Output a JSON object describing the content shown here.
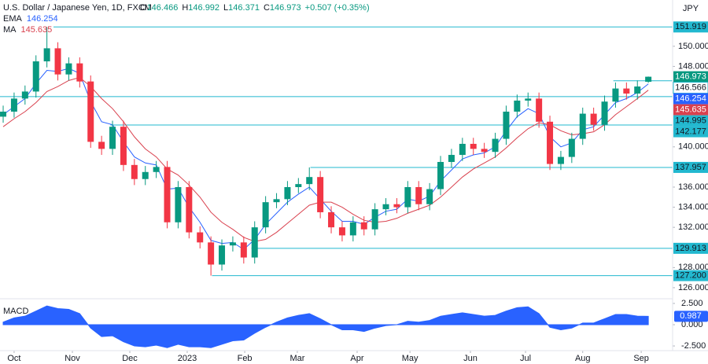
{
  "header": {
    "title": "U.S. Dollar / Japanese Yen, 1D, FXCM",
    "ohlc": [
      {
        "key": "O",
        "value": "146.466"
      },
      {
        "key": "H",
        "value": "146.992"
      },
      {
        "key": "L",
        "value": "146.371"
      },
      {
        "key": "C",
        "value": "146.973"
      }
    ],
    "change": "+0.507 (+0.35%)",
    "currency": "JPY"
  },
  "chart_data": [
    {
      "type": "candlestick",
      "up_color": "#089981",
      "down_color": "#f23645",
      "xlim": [
        -0.29,
        61.22
      ],
      "ylim": [
        124.9,
        154.6
      ],
      "xticks": [
        {
          "value": 1.0,
          "label": "Oct"
        },
        {
          "value": 6.33,
          "label": "Nov"
        },
        {
          "value": 11.58,
          "label": "Dec"
        },
        {
          "value": 16.83,
          "label": "2023"
        },
        {
          "value": 22.09,
          "label": "Feb"
        },
        {
          "value": 26.9,
          "label": "Mar"
        },
        {
          "value": 32.37,
          "label": "Apr"
        },
        {
          "value": 37.2,
          "label": "May"
        },
        {
          "value": 42.73,
          "label": "Jun"
        },
        {
          "value": 47.77,
          "label": "Jul"
        },
        {
          "value": 53.0,
          "label": "Aug"
        },
        {
          "value": 58.35,
          "label": "Sep"
        }
      ],
      "yticks": [
        {
          "value": 150,
          "label": "150.000"
        },
        {
          "value": 148,
          "label": "148.000"
        },
        {
          "value": 140,
          "label": "140.000"
        },
        {
          "value": 136,
          "label": "136.000"
        },
        {
          "value": 134,
          "label": "134.000"
        },
        {
          "value": 132,
          "label": "132.000"
        },
        {
          "value": 128,
          "label": "128.000"
        },
        {
          "value": 126,
          "label": "126.000"
        }
      ],
      "open": [
        143.0,
        143.5,
        144.8,
        145.5,
        148.5,
        149.8,
        147.2,
        148.3,
        146.5,
        140.5,
        139.8,
        142.0,
        138.2,
        136.8,
        137.5,
        138.0,
        132.5,
        136.0,
        131.5,
        130.5,
        128.3,
        130.2,
        130.5,
        129.0,
        132.0,
        134.5,
        134.8,
        136.0,
        136.3,
        137.0,
        133.5,
        132.0,
        131.2,
        132.5,
        131.8,
        133.8,
        134.3,
        134.0,
        136.0,
        134.3,
        135.8,
        138.5,
        139.2,
        140.3,
        139.8,
        139.5,
        140.8,
        143.5,
        144.6,
        144.8,
        142.5,
        138.3,
        139.0,
        140.8,
        143.3,
        142.2,
        144.5,
        145.8,
        145.3,
        146.466
      ],
      "high": [
        144.1,
        145.4,
        146.1,
        149.1,
        151.919,
        150.4,
        148.9,
        148.9,
        147.1,
        141.1,
        142.6,
        142.6,
        138.8,
        138.1,
        138.6,
        138.6,
        136.6,
        136.6,
        132.1,
        131.1,
        130.8,
        131.1,
        131.1,
        132.6,
        135.1,
        135.4,
        136.6,
        136.9,
        137.957,
        137.6,
        134.1,
        132.6,
        133.1,
        133.1,
        134.4,
        134.9,
        134.9,
        136.6,
        136.6,
        136.4,
        139.1,
        139.8,
        140.9,
        140.9,
        140.4,
        141.4,
        144.1,
        145.2,
        145.4,
        145.4,
        143.1,
        139.6,
        141.4,
        143.9,
        143.9,
        145.1,
        146.4,
        146.4,
        146.6,
        146.992
      ],
      "low": [
        142.4,
        142.9,
        144.2,
        144.9,
        147.9,
        146.6,
        146.6,
        145.9,
        139.9,
        139.2,
        139.2,
        137.6,
        136.2,
        136.2,
        136.9,
        131.9,
        131.9,
        130.9,
        129.9,
        127.2,
        127.7,
        129.6,
        128.4,
        128.4,
        131.4,
        133.9,
        134.2,
        135.4,
        135.7,
        132.9,
        131.4,
        130.6,
        130.6,
        131.2,
        131.2,
        133.2,
        133.4,
        133.4,
        133.7,
        133.7,
        135.2,
        137.9,
        138.6,
        139.2,
        138.9,
        138.9,
        140.2,
        142.9,
        144.0,
        141.9,
        137.7,
        137.7,
        138.4,
        140.2,
        141.6,
        141.6,
        143.9,
        144.7,
        144.7,
        146.371
      ],
      "close": [
        143.5,
        144.8,
        145.5,
        148.5,
        149.8,
        147.2,
        148.3,
        146.5,
        140.5,
        139.8,
        142.0,
        138.2,
        136.8,
        137.5,
        138.0,
        132.5,
        136.0,
        131.5,
        130.5,
        128.3,
        130.2,
        130.5,
        129.0,
        132.0,
        134.5,
        134.8,
        136.0,
        136.3,
        137.0,
        133.5,
        132.0,
        131.2,
        132.5,
        131.8,
        133.8,
        134.3,
        134.0,
        136.0,
        134.3,
        135.8,
        138.5,
        139.2,
        140.3,
        139.8,
        139.5,
        140.8,
        143.5,
        144.6,
        144.8,
        142.5,
        138.3,
        139.0,
        140.8,
        143.3,
        142.2,
        144.5,
        145.8,
        145.3,
        146.0,
        146.973
      ],
      "series": [
        {
          "name": "EMA",
          "color": "#2962ff",
          "last_label": "146.254",
          "values": [
            143.2,
            144.0,
            144.8,
            146.3,
            147.6,
            147.5,
            147.8,
            147.3,
            144.5,
            142.5,
            142.2,
            140.5,
            139.0,
            138.4,
            138.2,
            135.8,
            135.9,
            134.0,
            132.5,
            130.7,
            130.4,
            130.5,
            129.8,
            130.8,
            132.3,
            133.4,
            134.5,
            135.3,
            136.0,
            134.8,
            133.6,
            132.6,
            132.6,
            132.3,
            133.0,
            133.6,
            133.8,
            134.8,
            134.6,
            135.1,
            136.6,
            137.7,
            138.8,
            139.2,
            139.4,
            140.0,
            141.6,
            143.0,
            143.8,
            143.3,
            141.0,
            140.0,
            140.4,
            141.7,
            142.0,
            143.2,
            144.4,
            144.8,
            145.4,
            146.254
          ]
        },
        {
          "name": "MA",
          "color": "#d9414e",
          "last_label": "145.635",
          "values": [
            142.0,
            142.8,
            143.5,
            144.4,
            145.5,
            146.0,
            146.6,
            146.9,
            146.0,
            144.8,
            143.8,
            142.5,
            141.0,
            139.8,
            139.0,
            137.8,
            137.2,
            136.2,
            135.0,
            133.5,
            132.5,
            131.8,
            131.0,
            130.6,
            130.8,
            131.5,
            132.4,
            133.3,
            134.2,
            134.5,
            134.5,
            134.0,
            133.3,
            132.7,
            132.5,
            132.6,
            132.9,
            133.4,
            133.8,
            134.2,
            135.0,
            136.0,
            137.0,
            137.8,
            138.4,
            139.0,
            139.9,
            140.9,
            141.8,
            142.4,
            142.2,
            141.6,
            141.2,
            141.3,
            141.5,
            142.2,
            143.2,
            144.0,
            144.8,
            145.635
          ]
        }
      ],
      "last_price": {
        "value": 146.973,
        "label": "146.973",
        "color": "#089981"
      },
      "levels": [
        {
          "value": 151.919,
          "label": "151.919",
          "from": 4.6
        },
        {
          "value": 146.566,
          "label": "146.566",
          "from": 55.8,
          "outline": true
        },
        {
          "value": 144.995,
          "label": "144.995",
          "from": -0.29
        },
        {
          "value": 142.177,
          "label": "142.177",
          "from": 9.8
        },
        {
          "value": 137.957,
          "label": "137.957",
          "from": 28.1
        },
        {
          "value": 129.913,
          "label": "129.913",
          "from": 22.7
        },
        {
          "value": 127.2,
          "label": "127.200",
          "from": 19.1
        }
      ],
      "level_color": "#22b8cf"
    },
    {
      "type": "area",
      "name": "MACD",
      "color": "#2962ff",
      "last_label": "0.987",
      "ylim": [
        -3.05,
        3.05
      ],
      "yticks": [
        {
          "value": 2.5,
          "label": "2.500"
        },
        {
          "value": 0,
          "label": "0.000"
        },
        {
          "value": -2.5,
          "label": "-2.500"
        }
      ],
      "values": [
        0.3,
        0.8,
        1.0,
        1.6,
        2.2,
        1.9,
        1.8,
        1.3,
        -0.4,
        -1.4,
        -1.3,
        -2.0,
        -2.5,
        -2.6,
        -2.4,
        -2.7,
        -2.3,
        -2.6,
        -2.6,
        -2.7,
        -2.3,
        -1.9,
        -1.8,
        -1.0,
        -0.3,
        0.3,
        0.8,
        1.1,
        1.3,
        0.7,
        0.0,
        -0.6,
        -0.6,
        -0.8,
        -0.4,
        -0.1,
        0.0,
        0.4,
        0.3,
        0.5,
        1.0,
        1.2,
        1.4,
        1.2,
        1.0,
        1.1,
        1.6,
        2.0,
        2.1,
        1.3,
        -0.3,
        -0.6,
        -0.4,
        0.2,
        0.2,
        0.7,
        1.2,
        1.2,
        1.0,
        0.987
      ]
    }
  ]
}
